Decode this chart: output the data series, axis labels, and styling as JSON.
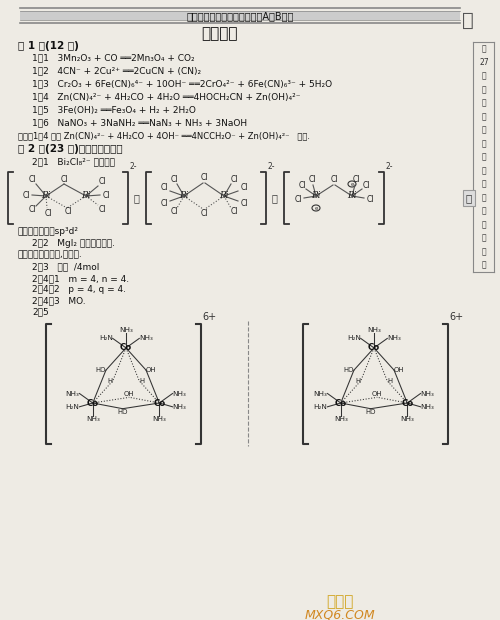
{
  "page_title": "新编高中化学竞赛培优教程（A、B级）",
  "main_title": "参考答案",
  "right_sidebar": [
    "第",
    "27",
    "届",
    "中",
    "国",
    "化",
    "学",
    "奥",
    "林",
    "匹",
    "克",
    "（",
    "初",
    "赛",
    "）",
    "试",
    "题"
  ],
  "q1_header": "第 1 题(12 分)",
  "q2_header": "第 2 题(23 分)简要回答或计算",
  "bg_color": "#f0eeea",
  "text_color": "#1a1a1a",
  "watermark1": "MXQ6.COM",
  "watermark2": "答案圈"
}
